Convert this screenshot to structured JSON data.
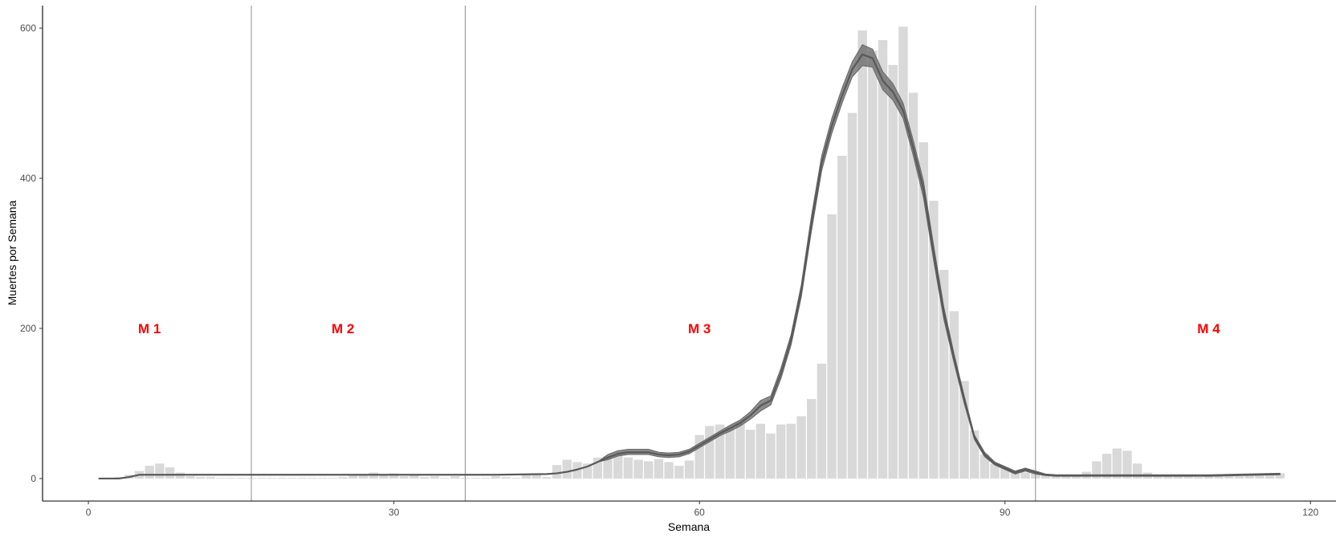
{
  "chart_data": {
    "type": "bar",
    "title": "",
    "xlabel": "Semana",
    "ylabel": "Muertes por Semana",
    "xlim": [
      -4.5,
      122.5
    ],
    "ylim": [
      -30,
      630
    ],
    "xticks": [
      0,
      30,
      60,
      90,
      120
    ],
    "yticks": [
      0,
      200,
      400,
      600
    ],
    "grid": false,
    "colors": {
      "bars": "#d9d9d9",
      "band": "#666666",
      "line": "#595959",
      "vlines": "#8c8c8c",
      "axis": "#000000",
      "period_labels": "#ff0000"
    },
    "vertical_lines_x": [
      16,
      37,
      93
    ],
    "period_labels": [
      {
        "text": "M 1",
        "x": 6,
        "y": 200
      },
      {
        "text": "M 2",
        "x": 25,
        "y": 200
      },
      {
        "text": "M 3",
        "x": 60,
        "y": 200
      },
      {
        "text": "M 4",
        "x": 110,
        "y": 200
      }
    ],
    "bars": {
      "x": [
        3,
        4,
        5,
        6,
        7,
        8,
        9,
        10,
        11,
        12,
        13,
        14,
        15,
        16,
        17,
        18,
        19,
        20,
        21,
        22,
        23,
        24,
        25,
        26,
        27,
        28,
        29,
        30,
        31,
        32,
        33,
        34,
        35,
        36,
        37,
        38,
        39,
        40,
        41,
        42,
        43,
        44,
        45,
        46,
        47,
        48,
        49,
        50,
        51,
        52,
        53,
        54,
        55,
        56,
        57,
        58,
        59,
        60,
        61,
        62,
        63,
        64,
        65,
        66,
        67,
        68,
        69,
        70,
        71,
        72,
        73,
        74,
        75,
        76,
        77,
        78,
        79,
        80,
        81,
        82,
        83,
        84,
        85,
        86,
        87,
        88,
        89,
        90,
        91,
        92,
        93,
        94,
        95,
        96,
        97,
        98,
        99,
        100,
        101,
        102,
        103,
        104,
        105,
        106,
        107,
        108,
        109,
        110,
        111,
        112,
        113,
        114,
        115,
        116,
        117
      ],
      "values": [
        2,
        5,
        10,
        17,
        20,
        15,
        8,
        3,
        2,
        2,
        1,
        1,
        1,
        1,
        1,
        1,
        1,
        1,
        1,
        1,
        1,
        1,
        2,
        4,
        6,
        8,
        5,
        7,
        3,
        4,
        2,
        3,
        1,
        3,
        1,
        1,
        1,
        3,
        2,
        1,
        6,
        7,
        2,
        18,
        25,
        22,
        20,
        28,
        30,
        32,
        28,
        25,
        23,
        26,
        22,
        17,
        24,
        58,
        70,
        72,
        68,
        74,
        65,
        73,
        60,
        72,
        73,
        83,
        106,
        153,
        352,
        430,
        487,
        597,
        570,
        584,
        551,
        602,
        514,
        448,
        370,
        278,
        223,
        130,
        64,
        32,
        20,
        14,
        10,
        8,
        7,
        5,
        4,
        3,
        4,
        9,
        23,
        33,
        40,
        37,
        20,
        8,
        4,
        3,
        3,
        3,
        2,
        4,
        5,
        4,
        3,
        4,
        5,
        6,
        7
      ]
    },
    "fit_line": {
      "x": [
        1,
        3,
        4,
        5,
        10,
        20,
        30,
        40,
        45,
        46,
        47,
        48,
        49,
        50,
        51,
        52,
        53,
        54,
        55,
        56,
        57,
        58,
        59,
        60,
        61,
        62,
        63,
        64,
        65,
        66,
        67,
        68,
        69,
        70,
        71,
        72,
        73,
        74,
        75,
        76,
        77,
        78,
        79,
        80,
        81,
        82,
        83,
        84,
        85,
        86,
        87,
        88,
        89,
        90,
        91,
        92,
        93,
        94,
        95,
        96,
        100,
        110,
        117
      ],
      "values": [
        0,
        0,
        2,
        5,
        5,
        5,
        5,
        5,
        6,
        7,
        9,
        12,
        16,
        22,
        28,
        33,
        35,
        35,
        35,
        32,
        31,
        32,
        36,
        44,
        52,
        60,
        67,
        74,
        84,
        97,
        104,
        140,
        185,
        250,
        340,
        420,
        470,
        510,
        545,
        565,
        560,
        530,
        515,
        490,
        440,
        385,
        300,
        220,
        160,
        105,
        55,
        32,
        20,
        14,
        8,
        12,
        8,
        5,
        4,
        4,
        4,
        4,
        6
      ],
      "band_upper": [
        0,
        0,
        2,
        5,
        5,
        5,
        5,
        5,
        6,
        7,
        9,
        12,
        16,
        22,
        32,
        37,
        39,
        39,
        39,
        35,
        34,
        35,
        39,
        47,
        55,
        63,
        71,
        78,
        89,
        104,
        110,
        147,
        192,
        258,
        350,
        430,
        480,
        520,
        555,
        578,
        572,
        542,
        526,
        500,
        450,
        396,
        310,
        228,
        166,
        110,
        58,
        35,
        22,
        16,
        10,
        14,
        10,
        6,
        5,
        5,
        5,
        5,
        7
      ],
      "band_lower": [
        0,
        0,
        2,
        5,
        5,
        5,
        5,
        5,
        6,
        7,
        9,
        12,
        16,
        22,
        25,
        30,
        32,
        32,
        32,
        29,
        28,
        29,
        33,
        41,
        49,
        57,
        63,
        70,
        79,
        90,
        98,
        133,
        178,
        242,
        330,
        410,
        460,
        500,
        535,
        550,
        548,
        518,
        504,
        480,
        430,
        374,
        290,
        212,
        154,
        100,
        52,
        29,
        18,
        12,
        6,
        10,
        6,
        4,
        3,
        3,
        3,
        3,
        5
      ]
    }
  }
}
